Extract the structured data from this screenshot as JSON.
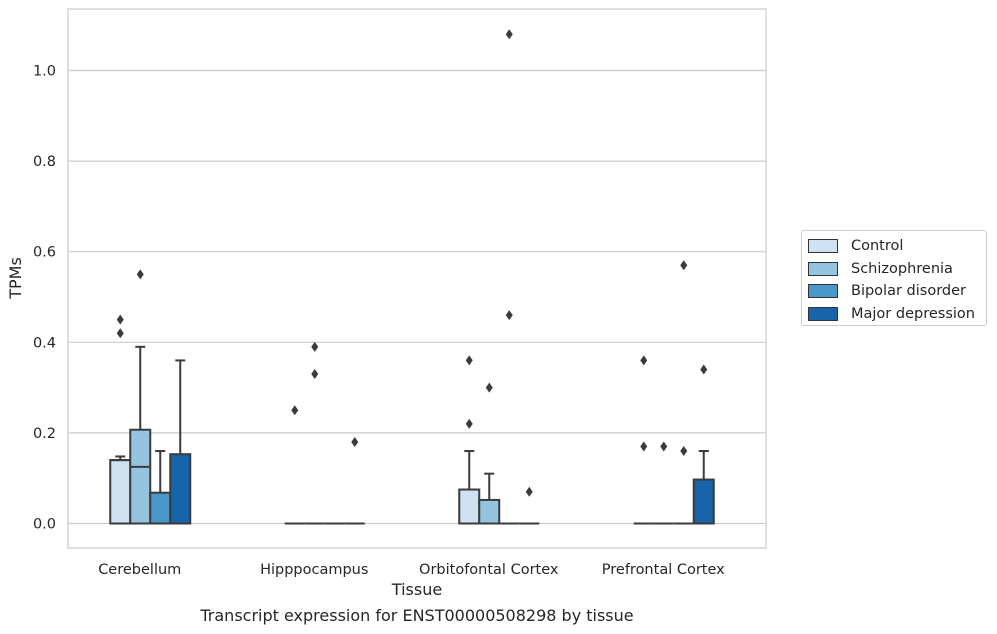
{
  "chart_data": {
    "type": "box",
    "title": "",
    "caption": "Transcript expression for ENST00000508298 by tissue",
    "xlabel": "Tissue",
    "ylabel": "TPMs",
    "ylim": [
      -0.05,
      1.14
    ],
    "yticks": [
      0.0,
      0.2,
      0.4,
      0.6,
      0.8,
      1.0
    ],
    "ytick_labels": [
      "0.0",
      "0.2",
      "0.4",
      "0.6",
      "0.8",
      "1.0"
    ],
    "grid": "horizontal",
    "legend_position": "right",
    "categories": [
      "Cerebellum",
      "Hipppocampus",
      "Orbitofontal Cortex",
      "Prefrontal Cortex"
    ],
    "series": [
      {
        "name": "Control",
        "color": "#d0e1f2",
        "boxes": [
          {
            "q1": 0.0,
            "median": 0.14,
            "q3": 0.14,
            "whisker_low": 0.0,
            "whisker_high": 0.148,
            "outliers": [
              0.42,
              0.45
            ]
          },
          {
            "q1": 0.0,
            "median": 0.0,
            "q3": 0.0,
            "whisker_low": 0.0,
            "whisker_high": 0.0,
            "outliers": [
              0.25
            ]
          },
          {
            "q1": 0.0,
            "median": 0.0,
            "q3": 0.075,
            "whisker_low": 0.0,
            "whisker_high": 0.16,
            "outliers": [
              0.22,
              0.36
            ]
          },
          {
            "q1": 0.0,
            "median": 0.0,
            "q3": 0.0,
            "whisker_low": 0.0,
            "whisker_high": 0.0,
            "outliers": [
              0.17,
              0.36
            ]
          }
        ]
      },
      {
        "name": "Schizophrenia",
        "color": "#94c4df",
        "boxes": [
          {
            "q1": 0.0,
            "median": 0.125,
            "q3": 0.207,
            "whisker_low": 0.0,
            "whisker_high": 0.39,
            "outliers": [
              0.55
            ]
          },
          {
            "q1": 0.0,
            "median": 0.0,
            "q3": 0.0,
            "whisker_low": 0.0,
            "whisker_high": 0.0,
            "outliers": [
              0.33,
              0.39
            ]
          },
          {
            "q1": 0.0,
            "median": 0.0,
            "q3": 0.052,
            "whisker_low": 0.0,
            "whisker_high": 0.11,
            "outliers": [
              0.3
            ]
          },
          {
            "q1": 0.0,
            "median": 0.0,
            "q3": 0.0,
            "whisker_low": 0.0,
            "whisker_high": 0.0,
            "outliers": [
              0.17
            ]
          }
        ]
      },
      {
        "name": "Bipolar disorder",
        "color": "#4a98c9",
        "boxes": [
          {
            "q1": 0.0,
            "median": 0.0,
            "q3": 0.068,
            "whisker_low": 0.0,
            "whisker_high": 0.16,
            "outliers": []
          },
          {
            "q1": 0.0,
            "median": 0.0,
            "q3": 0.0,
            "whisker_low": 0.0,
            "whisker_high": 0.0,
            "outliers": []
          },
          {
            "q1": 0.0,
            "median": 0.0,
            "q3": 0.0,
            "whisker_low": 0.0,
            "whisker_high": 0.0,
            "outliers": [
              0.46,
              1.08
            ]
          },
          {
            "q1": 0.0,
            "median": 0.0,
            "q3": 0.0,
            "whisker_low": 0.0,
            "whisker_high": 0.0,
            "outliers": [
              0.16,
              0.57
            ]
          }
        ]
      },
      {
        "name": "Major depression",
        "color": "#1764ab",
        "boxes": [
          {
            "q1": 0.0,
            "median": 0.0,
            "q3": 0.153,
            "whisker_low": 0.0,
            "whisker_high": 0.36,
            "outliers": []
          },
          {
            "q1": 0.0,
            "median": 0.0,
            "q3": 0.0,
            "whisker_low": 0.0,
            "whisker_high": 0.0,
            "outliers": [
              0.18
            ]
          },
          {
            "q1": 0.0,
            "median": 0.0,
            "q3": 0.0,
            "whisker_low": 0.0,
            "whisker_high": 0.0,
            "outliers": [
              0.07
            ]
          },
          {
            "q1": 0.0,
            "median": 0.0,
            "q3": 0.097,
            "whisker_low": 0.0,
            "whisker_high": 0.16,
            "outliers": [
              0.34
            ]
          }
        ]
      }
    ]
  }
}
